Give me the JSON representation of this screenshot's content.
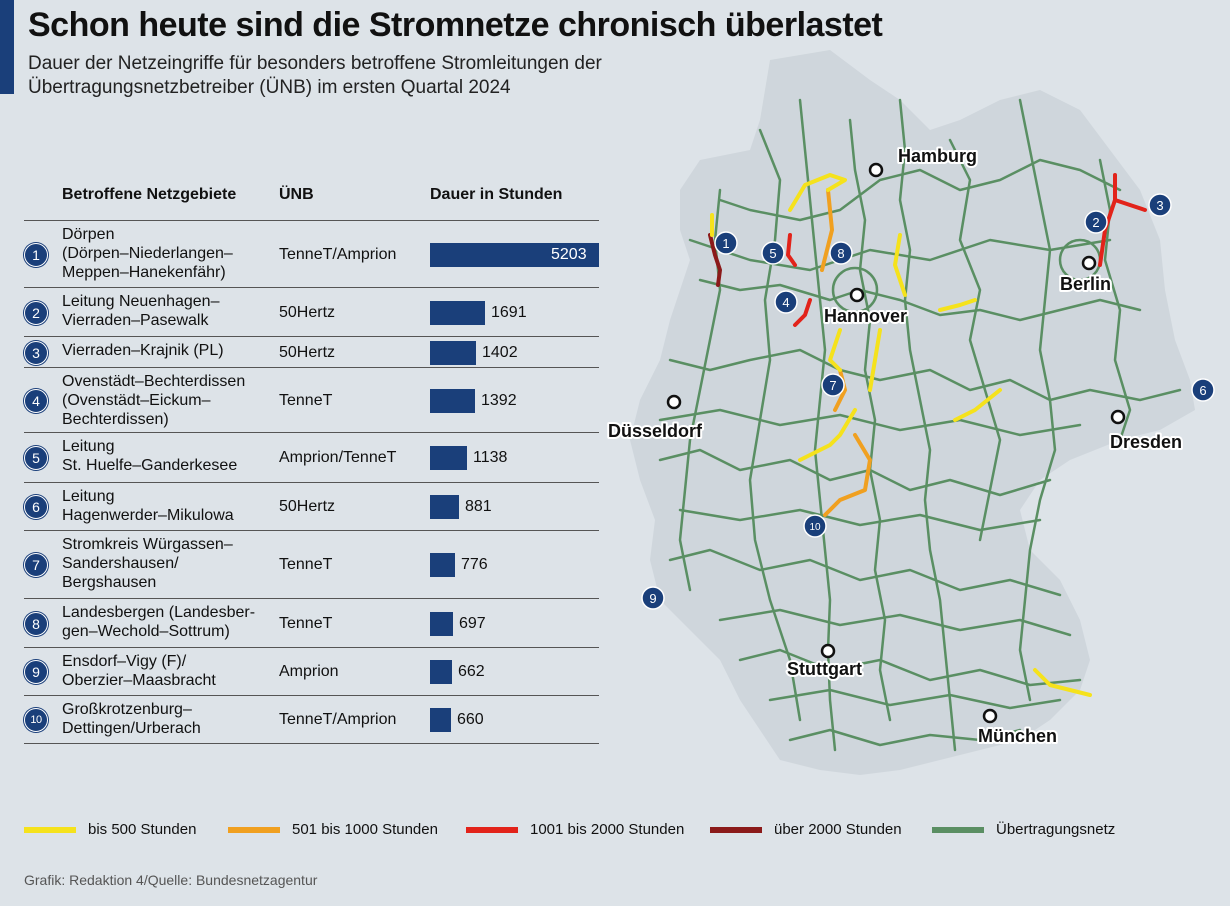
{
  "title": "Schon heute sind die Stromnetze chronisch überlastet",
  "subtitle": "Dauer der Netzeingriffe für besonders betroffene Stromleitungen der Übertragungsnetzbetreiber (ÜNB) im ersten Quartal 2024",
  "table": {
    "headers": {
      "area": "Betroffene Netzgebiete",
      "unb": "ÜNB",
      "duration": "Dauer in Stunden"
    }
  },
  "chart_data": {
    "type": "bar",
    "orientation": "horizontal",
    "title": "Schon heute sind die Stromnetze chronisch überlastet",
    "categories": [
      "Dörpen (Dörpen–Niederlangen–Meppen–Hanekenfähr)",
      "Leitung Neuenhagen–Vierraden–Pasewalk",
      "Vierraden–Krajnik (PL)",
      "Ovenstädt–Bechterdissen (Ovenstädt–Eickum–Bechterdissen)",
      "Leitung St. Huelfe–Ganderkesee",
      "Leitung Hagenwerder–Mikulowa",
      "Stromkreis Würgassen–Sandershausen/Bergshausen",
      "Landesbergen (Landesbergen–Wechold–Sottrum)",
      "Ensdorf–Vigy (F)/Oberzier–Maasbracht",
      "Großkrotzenburg–Dettingen/Urberach"
    ],
    "values": [
      5203,
      1691,
      1402,
      1392,
      1138,
      881,
      776,
      697,
      662,
      660
    ],
    "xlabel": "Dauer in Stunden",
    "xlim": [
      0,
      5203
    ],
    "rows": [
      {
        "num": "1",
        "area": "Dörpen\n(Dörpen–Niederlangen–\nMeppen–Hanekenfähr)",
        "unb": "TenneT/Amprion",
        "value": 5203,
        "label": "5203"
      },
      {
        "num": "2",
        "area": "Leitung Neuenhagen–\nVierraden–Pasewalk",
        "unb": "50Hertz",
        "value": 1691,
        "label": "1691"
      },
      {
        "num": "3",
        "area": "Vierraden–Krajnik (PL)",
        "unb": "50Hertz",
        "value": 1402,
        "label": "1402"
      },
      {
        "num": "4",
        "area": "Ovenstädt–Bechterdissen\n(Ovenstädt–Eickum–\nBechterdissen)",
        "unb": "TenneT",
        "value": 1392,
        "label": "1392"
      },
      {
        "num": "5",
        "area": "Leitung\nSt. Huelfe–Ganderkesee",
        "unb": "Amprion/TenneT",
        "value": 1138,
        "label": "1138"
      },
      {
        "num": "6",
        "area": "Leitung\nHagenwerder–Mikulowa",
        "unb": "50Hertz",
        "value": 881,
        "label": "881"
      },
      {
        "num": "7",
        "area": "Stromkreis Würgassen–\nSandershausen/\nBergshausen",
        "unb": "TenneT",
        "value": 776,
        "label": "776"
      },
      {
        "num": "8",
        "area": "Landesbergen (Landesber-\ngen–Wechold–Sottrum)",
        "unb": "TenneT",
        "value": 697,
        "label": "697"
      },
      {
        "num": "9",
        "area": "Ensdorf–Vigy (F)/\nOberzier–Maasbracht",
        "unb": "Amprion",
        "value": 662,
        "label": "662"
      },
      {
        "num": "10",
        "area": "Großkrotzenburg–\nDettingen/Urberach",
        "unb": "TenneT/Amprion",
        "value": 660,
        "label": "660"
      }
    ],
    "colors": {
      "bar": "#1a3f7a",
      "bar_label_inside": "#ffffff"
    }
  },
  "map": {
    "cities": [
      "Hamburg",
      "Berlin",
      "Hannover",
      "Düsseldorf",
      "Dresden",
      "Stuttgart",
      "München"
    ],
    "markers": [
      "1",
      "2",
      "3",
      "4",
      "5",
      "6",
      "7",
      "8",
      "9",
      "10"
    ],
    "colors": {
      "land": "#cfd6dc",
      "grid": "#5a8f63",
      "marker": "#1a3f7a"
    }
  },
  "legend": [
    {
      "label": "bis 500 Stunden",
      "color": "#f5e21c"
    },
    {
      "label": "501 bis 1000 Stunden",
      "color": "#f0a020"
    },
    {
      "label": "1001 bis 2000 Stunden",
      "color": "#e2231a"
    },
    {
      "label": "über 2000 Stunden",
      "color": "#8b1a1a"
    },
    {
      "label": "Übertragungsnetz",
      "color": "#5a8f63"
    }
  ],
  "source": "Grafik: Redaktion 4/Quelle: Bundesnetzagentur"
}
